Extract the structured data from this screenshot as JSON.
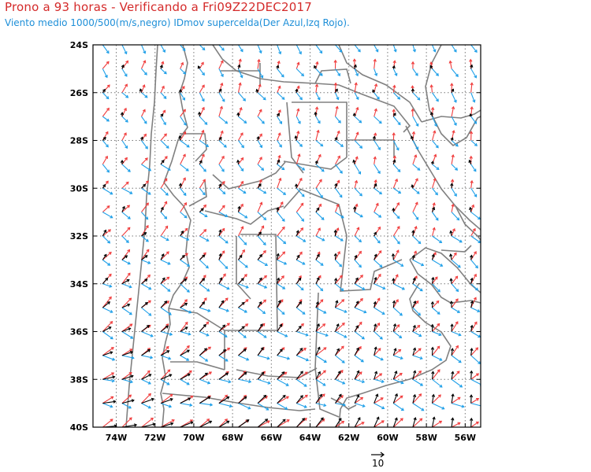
{
  "title": "Prono a 93 horas - Verificando a Fri09Z22DEC2017",
  "subtitle": "Viento medio 1000/500(m/s,negro) IDmov supercelda(Der Azul,Izq Rojo).",
  "colors": {
    "title": "#d42a2a",
    "subtitle": "#1e8fd8",
    "wind_mean": "#000000",
    "right_mover": "#1e9fe8",
    "left_mover": "#f03c3c",
    "borders": "#808080",
    "grid": "#7a7a7a"
  },
  "axes": {
    "lat_labels": [
      "24S",
      "26S",
      "28S",
      "30S",
      "32S",
      "34S",
      "36S",
      "38S",
      "40S"
    ],
    "lon_labels": [
      "74W",
      "72W",
      "70W",
      "68W",
      "66W",
      "64W",
      "62W",
      "60W",
      "58W",
      "56W"
    ]
  },
  "reference_vector": {
    "label": "10",
    "units": "m/s"
  },
  "grid_lines": "dotted"
}
